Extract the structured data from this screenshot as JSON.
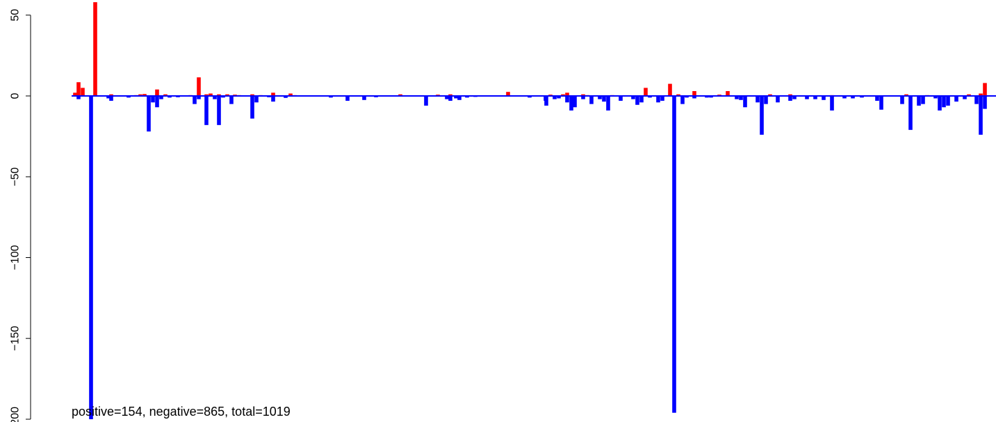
{
  "chart_data": {
    "type": "bar",
    "caption": "positive=154, negative=865, total=1019",
    "ylim": [
      -200,
      58
    ],
    "yticks": [
      50,
      0,
      -50,
      -100,
      -150,
      -200
    ],
    "ytick_labels": [
      "50",
      "0",
      "−50",
      "−100",
      "−150",
      "−200"
    ],
    "grid": false,
    "colors": {
      "positive": "#ff0000",
      "negative": "#0000ff",
      "baseline": "#0000ff"
    },
    "xlim": [
      0,
      1433
    ],
    "bars": [
      {
        "x": 108,
        "v": 2
      },
      {
        "x": 113,
        "v": 8.5
      },
      {
        "x": 119,
        "v": 5
      },
      {
        "x": 137,
        "v": 58
      },
      {
        "x": 131,
        "v": -200
      },
      {
        "x": 113,
        "v": -2
      },
      {
        "x": 156,
        "v": -1.5
      },
      {
        "x": 160,
        "v": -3
      },
      {
        "x": 160,
        "v": 1
      },
      {
        "x": 185,
        "v": -1
      },
      {
        "x": 196,
        "v": 0.5
      },
      {
        "x": 202,
        "v": 1
      },
      {
        "x": 208,
        "v": 1.2
      },
      {
        "x": 214,
        "v": -22
      },
      {
        "x": 220,
        "v": -4
      },
      {
        "x": 226,
        "v": 4
      },
      {
        "x": 226,
        "v": -7
      },
      {
        "x": 232,
        "v": -2
      },
      {
        "x": 238,
        "v": 1
      },
      {
        "x": 244,
        "v": -1
      },
      {
        "x": 256,
        "v": -0.8
      },
      {
        "x": 274,
        "v": 0.5
      },
      {
        "x": 280,
        "v": -5
      },
      {
        "x": 286,
        "v": 11.5
      },
      {
        "x": 286,
        "v": -2
      },
      {
        "x": 297,
        "v": -18
      },
      {
        "x": 297,
        "v": 1
      },
      {
        "x": 303,
        "v": 1.5
      },
      {
        "x": 309,
        "v": -2
      },
      {
        "x": 315,
        "v": -18
      },
      {
        "x": 315,
        "v": 1
      },
      {
        "x": 321,
        "v": -1
      },
      {
        "x": 327,
        "v": 1
      },
      {
        "x": 333,
        "v": -5
      },
      {
        "x": 338,
        "v": 0.8
      },
      {
        "x": 344,
        "v": 0.5
      },
      {
        "x": 363,
        "v": -14
      },
      {
        "x": 363,
        "v": 1
      },
      {
        "x": 369,
        "v": -4
      },
      {
        "x": 375,
        "v": 0.5
      },
      {
        "x": 387,
        "v": -0.8
      },
      {
        "x": 393,
        "v": 2
      },
      {
        "x": 393,
        "v": -3.5
      },
      {
        "x": 411,
        "v": -1.2
      },
      {
        "x": 418,
        "v": 1.5
      },
      {
        "x": 424,
        "v": 0.5
      },
      {
        "x": 476,
        "v": -1
      },
      {
        "x": 500,
        "v": -3
      },
      {
        "x": 524,
        "v": -2.5
      },
      {
        "x": 541,
        "v": -0.8
      },
      {
        "x": 576,
        "v": 1
      },
      {
        "x": 613,
        "v": -6
      },
      {
        "x": 630,
        "v": 0.8
      },
      {
        "x": 643,
        "v": -2
      },
      {
        "x": 648,
        "v": 1
      },
      {
        "x": 648,
        "v": -3
      },
      {
        "x": 656,
        "v": -1.5
      },
      {
        "x": 661,
        "v": -2.5
      },
      {
        "x": 672,
        "v": -1
      },
      {
        "x": 684,
        "v": -0.6
      },
      {
        "x": 731,
        "v": 2.5
      },
      {
        "x": 762,
        "v": -1
      },
      {
        "x": 785,
        "v": -3
      },
      {
        "x": 786,
        "v": -6
      },
      {
        "x": 792,
        "v": 0.8
      },
      {
        "x": 798,
        "v": -2
      },
      {
        "x": 804,
        "v": -1.5
      },
      {
        "x": 810,
        "v": 1
      },
      {
        "x": 816,
        "v": 2
      },
      {
        "x": 816,
        "v": -4
      },
      {
        "x": 822,
        "v": -9
      },
      {
        "x": 827,
        "v": -7
      },
      {
        "x": 839,
        "v": 1
      },
      {
        "x": 839,
        "v": -2
      },
      {
        "x": 845,
        "v": 0.5
      },
      {
        "x": 851,
        "v": -5
      },
      {
        "x": 863,
        "v": -2
      },
      {
        "x": 869,
        "v": -3.5
      },
      {
        "x": 875,
        "v": -9
      },
      {
        "x": 881,
        "v": 0.5
      },
      {
        "x": 893,
        "v": -3
      },
      {
        "x": 911,
        "v": -2
      },
      {
        "x": 917,
        "v": -5.5
      },
      {
        "x": 923,
        "v": -4
      },
      {
        "x": 929,
        "v": 5
      },
      {
        "x": 935,
        "v": -1
      },
      {
        "x": 947,
        "v": -4
      },
      {
        "x": 953,
        "v": -3
      },
      {
        "x": 964,
        "v": 7.5
      },
      {
        "x": 970,
        "v": -196
      },
      {
        "x": 976,
        "v": 1
      },
      {
        "x": 982,
        "v": -5
      },
      {
        "x": 988,
        "v": -1
      },
      {
        "x": 999,
        "v": 3
      },
      {
        "x": 999,
        "v": -1.5
      },
      {
        "x": 1017,
        "v": -1
      },
      {
        "x": 1023,
        "v": -1
      },
      {
        "x": 1035,
        "v": 0.8
      },
      {
        "x": 1047,
        "v": 3
      },
      {
        "x": 1060,
        "v": -2
      },
      {
        "x": 1066,
        "v": -2.5
      },
      {
        "x": 1072,
        "v": -7
      },
      {
        "x": 1090,
        "v": -4
      },
      {
        "x": 1096,
        "v": -24
      },
      {
        "x": 1102,
        "v": -5
      },
      {
        "x": 1108,
        "v": 1
      },
      {
        "x": 1119,
        "v": -4
      },
      {
        "x": 1137,
        "v": 1
      },
      {
        "x": 1137,
        "v": -3
      },
      {
        "x": 1143,
        "v": -2
      },
      {
        "x": 1161,
        "v": -2
      },
      {
        "x": 1173,
        "v": -2
      },
      {
        "x": 1185,
        "v": -2.5
      },
      {
        "x": 1197,
        "v": -9
      },
      {
        "x": 1197,
        "v": 0.5
      },
      {
        "x": 1215,
        "v": -1.5
      },
      {
        "x": 1227,
        "v": -1.5
      },
      {
        "x": 1240,
        "v": -1
      },
      {
        "x": 1262,
        "v": -3
      },
      {
        "x": 1268,
        "v": -8.5
      },
      {
        "x": 1298,
        "v": -5
      },
      {
        "x": 1304,
        "v": 1
      },
      {
        "x": 1310,
        "v": -21
      },
      {
        "x": 1322,
        "v": -6
      },
      {
        "x": 1328,
        "v": -5
      },
      {
        "x": 1334,
        "v": 0.5
      },
      {
        "x": 1346,
        "v": -1.5
      },
      {
        "x": 1352,
        "v": -9
      },
      {
        "x": 1358,
        "v": -7
      },
      {
        "x": 1364,
        "v": -6
      },
      {
        "x": 1376,
        "v": -3.5
      },
      {
        "x": 1388,
        "v": -2
      },
      {
        "x": 1394,
        "v": 1
      },
      {
        "x": 1405,
        "v": -5
      },
      {
        "x": 1411,
        "v": -24
      },
      {
        "x": 1411,
        "v": 1.5
      },
      {
        "x": 1417,
        "v": 8
      },
      {
        "x": 1417,
        "v": -8
      }
    ]
  }
}
